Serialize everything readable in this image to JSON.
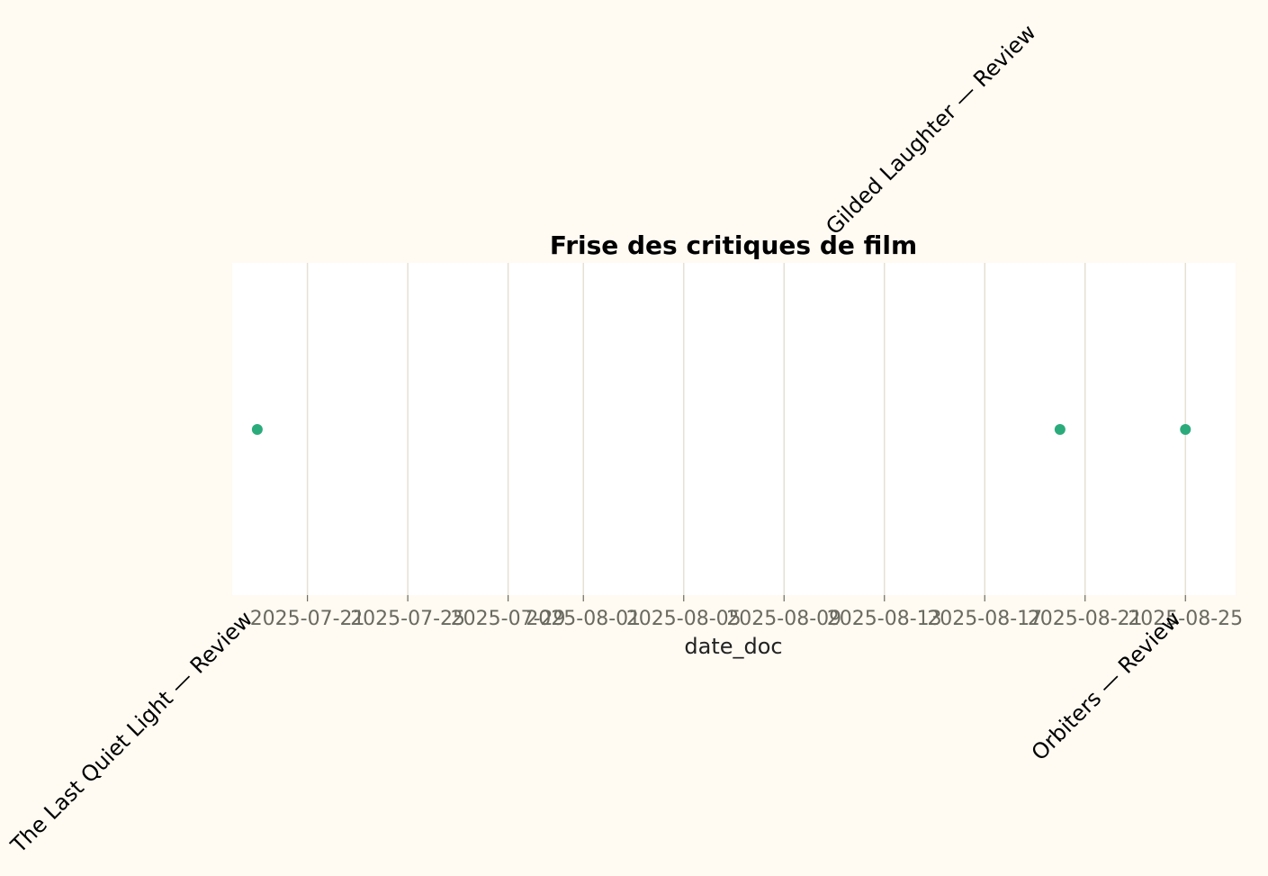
{
  "chart_data": {
    "type": "scatter",
    "title": "Frise des critiques de film",
    "xlabel": "date_doc",
    "ylabel": "",
    "x_ticks": [
      "2025-07-21",
      "2025-07-25",
      "2025-07-29",
      "2025-08-01",
      "2025-08-05",
      "2025-08-09",
      "2025-08-13",
      "2025-08-17",
      "2025-08-21",
      "2025-08-25"
    ],
    "xlim": [
      "2025-07-18",
      "2025-08-27"
    ],
    "grid": "vertical",
    "points": [
      {
        "date": "2025-07-19",
        "label": "The Last Quiet Light — Review",
        "label_side": "below"
      },
      {
        "date": "2025-08-20",
        "label": "Gilded Laughter — Review",
        "label_side": "above"
      },
      {
        "date": "2025-08-25",
        "label": "Orbiters — Review",
        "label_side": "below"
      }
    ],
    "colors": {
      "point": "#2bab7c",
      "grid": "#e6e0d4",
      "plot_background": "#ffffff",
      "page_background": "#fffaf2"
    }
  }
}
